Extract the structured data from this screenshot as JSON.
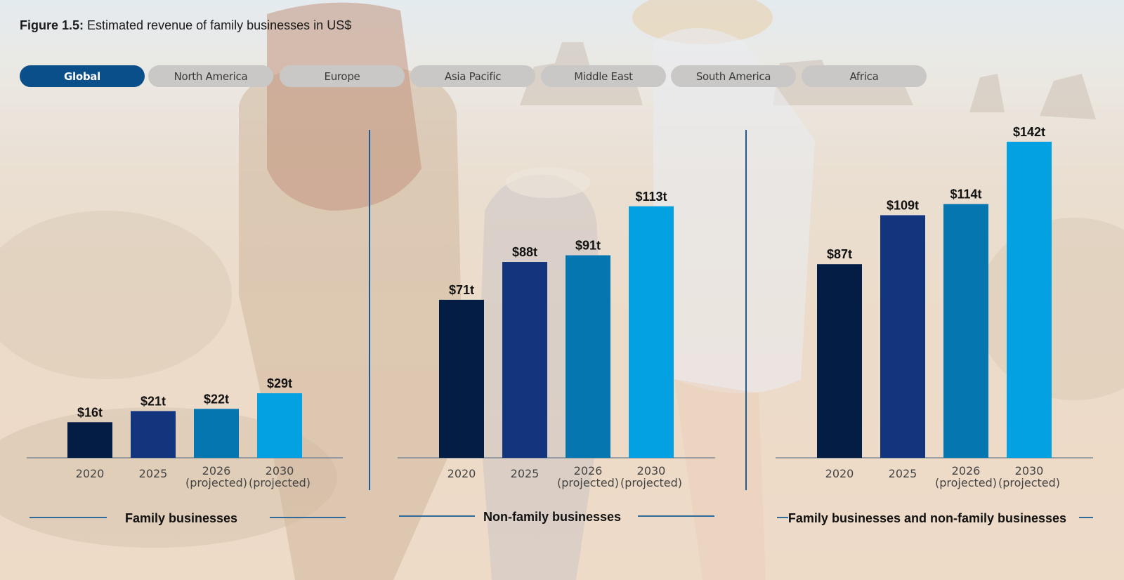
{
  "title": {
    "prefix": "Figure 1.5:",
    "text": " Estimated revenue of family businesses in US$"
  },
  "tabs": [
    {
      "label": "Global",
      "active": true
    },
    {
      "label": "North America",
      "active": false
    },
    {
      "label": "Europe",
      "active": false
    },
    {
      "label": "Asia Pacific",
      "active": false
    },
    {
      "label": "Middle East",
      "active": false
    },
    {
      "label": "South America",
      "active": false
    },
    {
      "label": "Africa",
      "active": false
    }
  ],
  "colors": {
    "2020": "#041d45",
    "2025": "#13357d",
    "2026": "#0676b0",
    "2030": "#03a1e2",
    "axis": "#4a6b85",
    "divider": "#1d5d93"
  },
  "chart_data": [
    {
      "type": "bar",
      "title": "Family businesses",
      "categories": [
        "2020",
        "2025",
        "2026\n(projected)",
        "2030\n(projected)"
      ],
      "values": [
        16,
        21,
        22,
        29
      ],
      "data_labels": [
        "$16t",
        "$21t",
        "$22t",
        "$29t"
      ],
      "unit": "US$ trillion"
    },
    {
      "type": "bar",
      "title": "Non-family businesses",
      "categories": [
        "2020",
        "2025",
        "2026\n(projected)",
        "2030\n(projected)"
      ],
      "values": [
        71,
        88,
        91,
        113
      ],
      "data_labels": [
        "$71t",
        "$88t",
        "$91t",
        "$113t"
      ],
      "unit": "US$ trillion"
    },
    {
      "type": "bar",
      "title": "Family businesses and non-family businesses",
      "categories": [
        "2020",
        "2025",
        "2026\n(projected)",
        "2030\n(projected)"
      ],
      "values": [
        87,
        109,
        114,
        142
      ],
      "data_labels": [
        "$87t",
        "$109t",
        "$114t",
        "$142t"
      ],
      "unit": "US$ trillion"
    }
  ]
}
